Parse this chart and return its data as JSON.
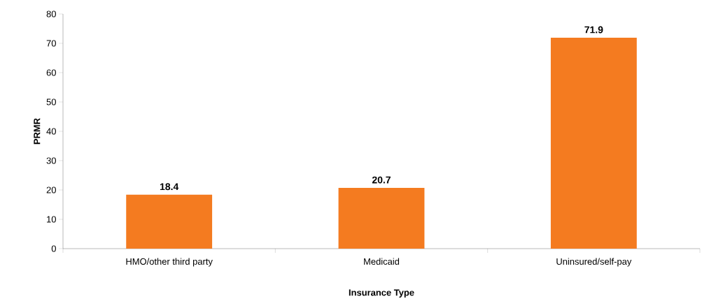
{
  "chart_data": {
    "type": "bar",
    "xlabel": "Insurance Type",
    "ylabel": "PRMR",
    "categories": [
      "HMO/other third party",
      "Medicaid",
      "Uninsured/self-pay"
    ],
    "values": [
      18.4,
      20.7,
      71.9
    ],
    "value_labels": [
      "18.4",
      "20.7",
      "71.9"
    ],
    "color": "#f47b20",
    "ylim": [
      0,
      80
    ],
    "yticks": [
      0,
      10,
      20,
      30,
      40,
      50,
      60,
      70,
      80
    ],
    "grid": false
  }
}
